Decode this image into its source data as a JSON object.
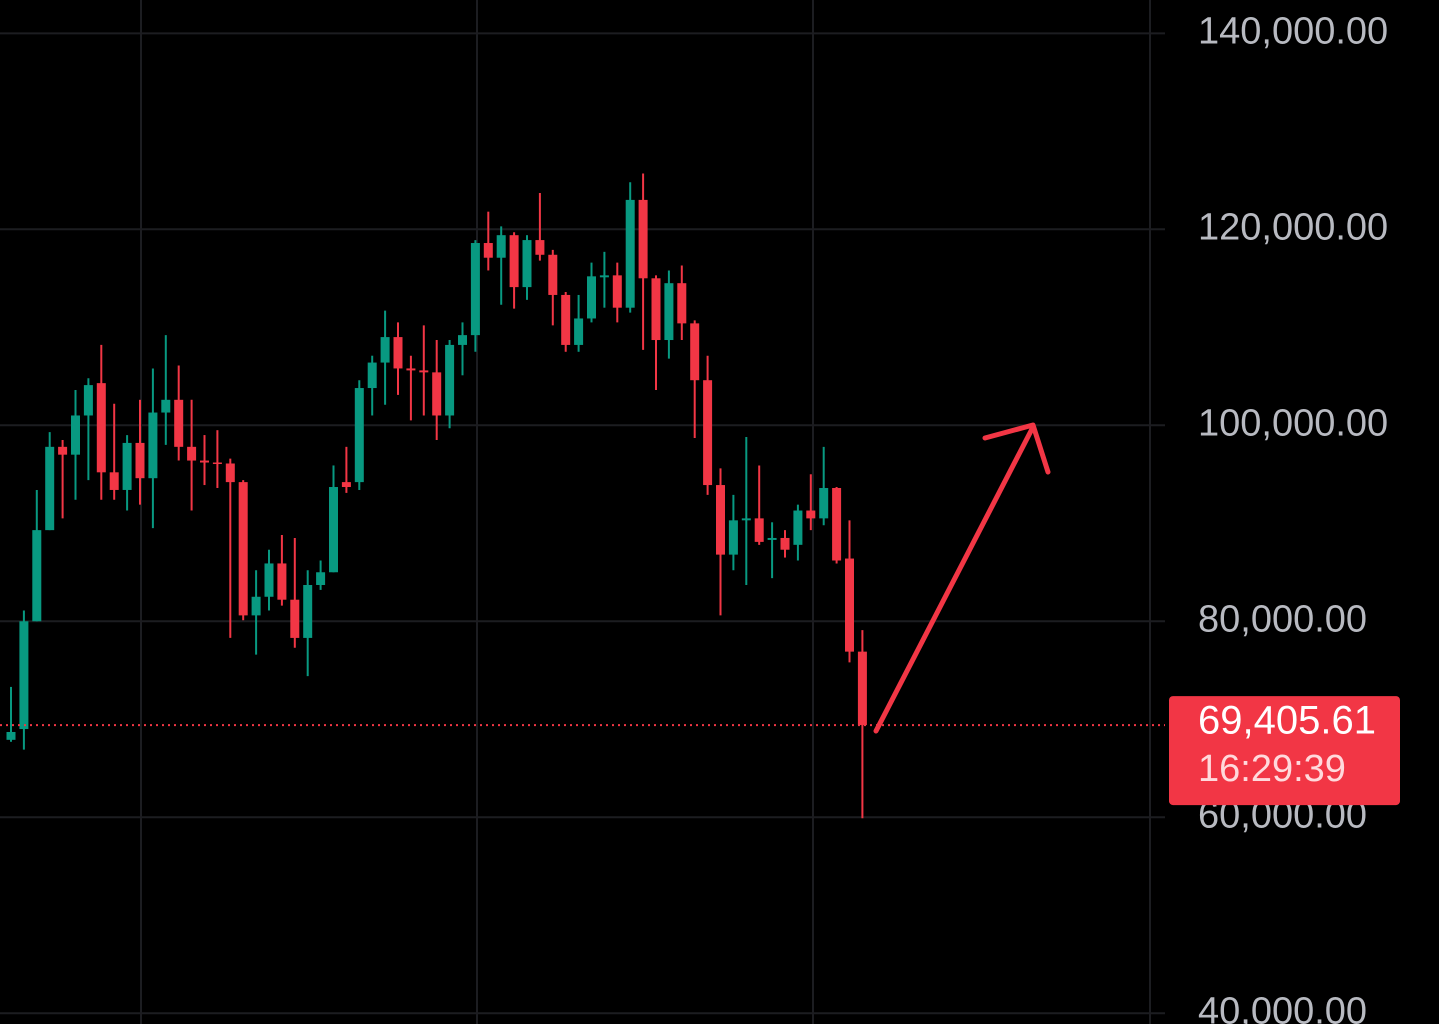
{
  "chart_data": {
    "type": "candlestick",
    "up_color": "#089981",
    "down_color": "#f23645",
    "grid": true,
    "categories": [
      null,
      null,
      null,
      null,
      null,
      null,
      null,
      null,
      null,
      null,
      null,
      null,
      null,
      null,
      null,
      null,
      null,
      null,
      null,
      null,
      null,
      null,
      null,
      null,
      null,
      null,
      null,
      null,
      null,
      null,
      null,
      null,
      null,
      null,
      null,
      null,
      null,
      null,
      null,
      null,
      null,
      null,
      null,
      null,
      null,
      null,
      null,
      null,
      null,
      null,
      null,
      null,
      null,
      null,
      null,
      null,
      null,
      null,
      null,
      null,
      null,
      null,
      null,
      null,
      null,
      null,
      null
    ],
    "open": [
      67900,
      69000,
      80000,
      89300,
      97800,
      97000,
      101000,
      104300,
      95200,
      93400,
      98200,
      94600,
      101300,
      102600,
      97800,
      96400,
      96200,
      96100,
      94200,
      80600,
      82500,
      85900,
      82200,
      78300,
      83700,
      85000,
      94200,
      94200,
      103800,
      106400,
      109000,
      105800,
      105600,
      105400,
      101000,
      108200,
      109200,
      118600,
      117100,
      119400,
      114100,
      118900,
      117400,
      113300,
      108200,
      110900,
      115100,
      115300,
      112000,
      123000,
      115000,
      108700,
      114500,
      110400,
      104600,
      93900,
      86800,
      90300,
      90500,
      88300,
      88500,
      87800,
      91300,
      90500,
      93600,
      86400,
      76900
    ],
    "high": [
      73300,
      81100,
      93400,
      99300,
      98500,
      103600,
      104800,
      108200,
      102200,
      99000,
      102600,
      105800,
      109200,
      106100,
      102600,
      99000,
      99500,
      96600,
      94400,
      85200,
      87300,
      88800,
      88500,
      85200,
      86200,
      95900,
      97800,
      104600,
      107100,
      111700,
      110500,
      107100,
      110200,
      108700,
      108700,
      110500,
      118900,
      121800,
      120300,
      119700,
      119400,
      123700,
      117900,
      113600,
      113300,
      116600,
      117700,
      116600,
      124800,
      125700,
      115300,
      115800,
      116300,
      110700,
      107100,
      95600,
      92900,
      98800,
      95900,
      90100,
      89300,
      91900,
      95000,
      97800,
      93700,
      90300,
      79100
    ],
    "low": [
      67700,
      66900,
      80000,
      89300,
      90500,
      92400,
      94400,
      92400,
      92400,
      91300,
      91900,
      89500,
      98000,
      96400,
      91300,
      93900,
      93600,
      78300,
      80100,
      76600,
      81100,
      81600,
      77300,
      74400,
      83200,
      85000,
      93100,
      93400,
      101000,
      102100,
      103100,
      100500,
      101000,
      98500,
      99700,
      105100,
      107500,
      115800,
      112300,
      111900,
      112800,
      116800,
      110200,
      107500,
      107500,
      110500,
      112000,
      110500,
      111500,
      107700,
      103600,
      106800,
      108700,
      98700,
      92900,
      80600,
      85200,
      83700,
      87800,
      84400,
      86500,
      86200,
      89300,
      89800,
      85900,
      75800,
      59900
    ],
    "close": [
      68700,
      80000,
      89300,
      97800,
      97000,
      101000,
      104100,
      95200,
      93400,
      98200,
      94600,
      101300,
      102600,
      97800,
      96400,
      96200,
      96100,
      94200,
      80600,
      82500,
      85900,
      82200,
      78300,
      83700,
      85000,
      93700,
      93700,
      103800,
      106400,
      109000,
      105800,
      105600,
      105400,
      101000,
      108200,
      109200,
      118600,
      117100,
      119400,
      114100,
      118900,
      117400,
      113300,
      108200,
      110900,
      115200,
      115300,
      112000,
      123000,
      115000,
      108700,
      114500,
      110400,
      104600,
      93900,
      86800,
      90300,
      90500,
      88100,
      88500,
      87300,
      91300,
      90500,
      93600,
      86200,
      76900,
      69405.61
    ],
    "ylim": [
      38900,
      143400
    ],
    "yticks": [
      {
        "value": 140000,
        "label": "140,000.00"
      },
      {
        "value": 120000,
        "label": "120,000.00"
      },
      {
        "value": 100000,
        "label": "100,000.00"
      },
      {
        "value": 80000,
        "label": "80,000.00"
      },
      {
        "value": 60000,
        "label": "60,000.00"
      },
      {
        "value": 40000,
        "label": "40,000.00"
      }
    ],
    "last_price": {
      "value": 69405.61,
      "label": "69,405.61"
    },
    "countdown": "16:29:39"
  }
}
